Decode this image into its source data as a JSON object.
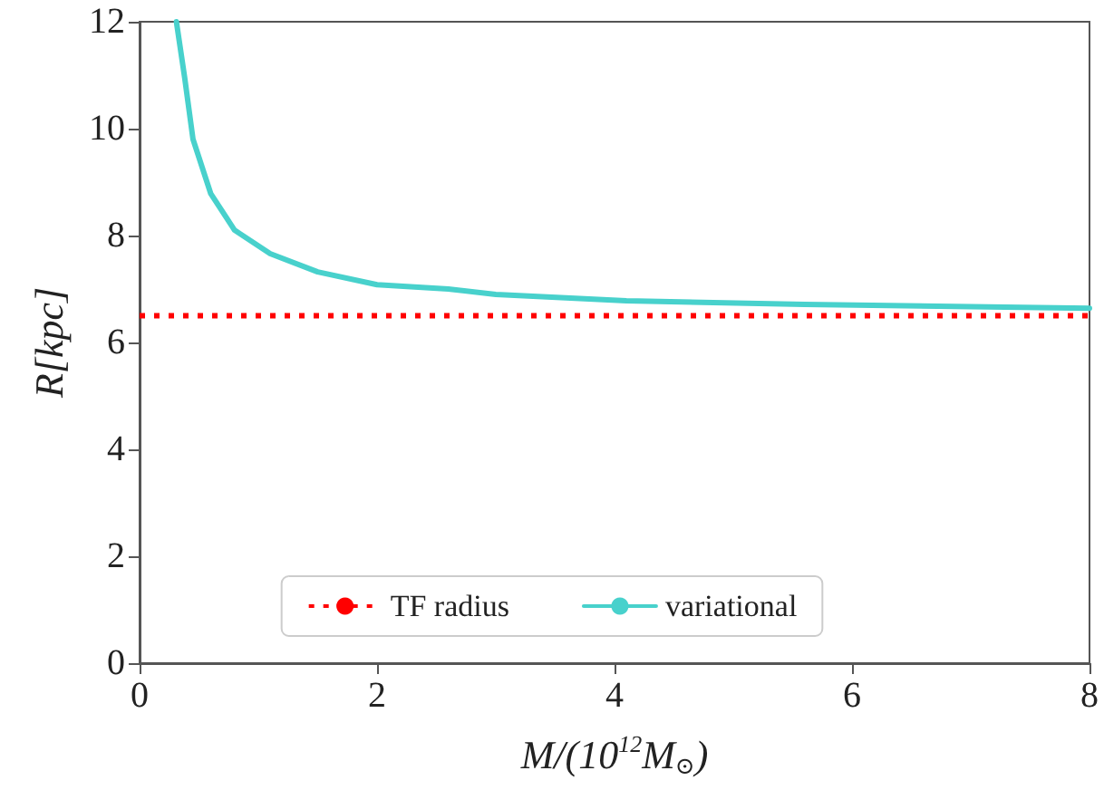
{
  "chart_data": {
    "type": "line",
    "xlabel": "M/(10$^{12}$M$_{⊙}$)",
    "ylabel": "R[kpc]",
    "series": [
      {
        "name": "variational",
        "color": "#48d1cc",
        "x": [
          0.31,
          0.38,
          0.45,
          0.6,
          0.8,
          1.1,
          1.5,
          2.0,
          2.6,
          3.0,
          4.1,
          5.6,
          8.0
        ],
        "values": [
          12,
          10.95,
          9.8,
          8.78,
          8.1,
          7.66,
          7.32,
          7.08,
          7.0,
          6.9,
          6.78,
          6.71,
          6.64
        ]
      }
    ],
    "ref_lines": [
      {
        "axis": "y",
        "value": 6.5,
        "label": "TF radius",
        "color": "#ff0000",
        "line_style": "dotted"
      }
    ],
    "xlim": [
      0,
      8
    ],
    "xticks": [
      0,
      2,
      4,
      6,
      8
    ],
    "ylim": [
      0,
      12
    ],
    "yticks": [
      0,
      2,
      4,
      6,
      8,
      10,
      12
    ],
    "grid": false,
    "legend": "bottom",
    "marker": "none",
    "line_style": "solid"
  }
}
